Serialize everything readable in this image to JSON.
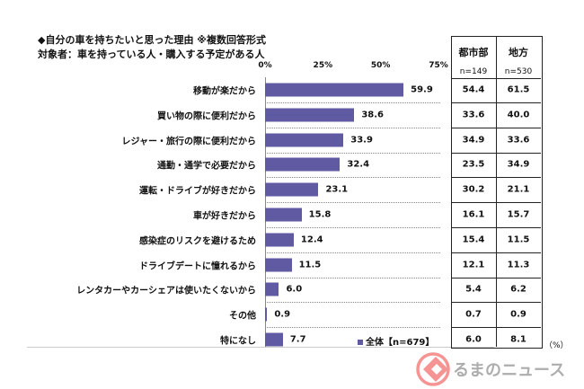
{
  "chart_data": {
    "type": "bar",
    "orientation": "horizontal",
    "title": "◆自分の車を持ちたいと思った理由 ※複数回答形式",
    "subtitle": "対象者：車を持っている人・購入する予定がある人",
    "xlim": [
      0,
      75
    ],
    "xticks": [
      "0%",
      "25%",
      "50%",
      "75%"
    ],
    "categories": [
      "移動が楽だから",
      "買い物の際に便利だから",
      "レジャー・旅行の際に便利だから",
      "通勤・通学で必要だから",
      "運転・ドライブが好きだから",
      "車が好きだから",
      "感染症のリスクを避けるため",
      "ドライブデートに憧れるから",
      "レンタカーやカーシェアは使いたくないから",
      "その他",
      "特になし"
    ],
    "series": [
      {
        "name": "全体【n=679】",
        "values": [
          59.9,
          38.6,
          33.9,
          32.4,
          23.1,
          15.8,
          12.4,
          11.5,
          6.0,
          0.9,
          7.7
        ],
        "color": "#5f5aa2"
      }
    ],
    "grid": "dotted horizontal separators",
    "legend": "bottom-right",
    "table": {
      "columns": [
        {
          "header": "都市部",
          "n": "n=149",
          "values": [
            "54.4",
            "33.6",
            "34.9",
            "23.5",
            "30.2",
            "16.1",
            "15.4",
            "12.1",
            "5.4",
            "0.7",
            "6.0"
          ]
        },
        {
          "header": "地方",
          "n": "n=530",
          "values": [
            "61.5",
            "40.0",
            "33.6",
            "34.9",
            "21.1",
            "15.7",
            "11.5",
            "11.3",
            "6.2",
            "0.9",
            "8.1"
          ]
        }
      ],
      "unit": "（%）"
    }
  },
  "watermark": {
    "text": "くるまのニュース",
    "color": "#f05050"
  }
}
